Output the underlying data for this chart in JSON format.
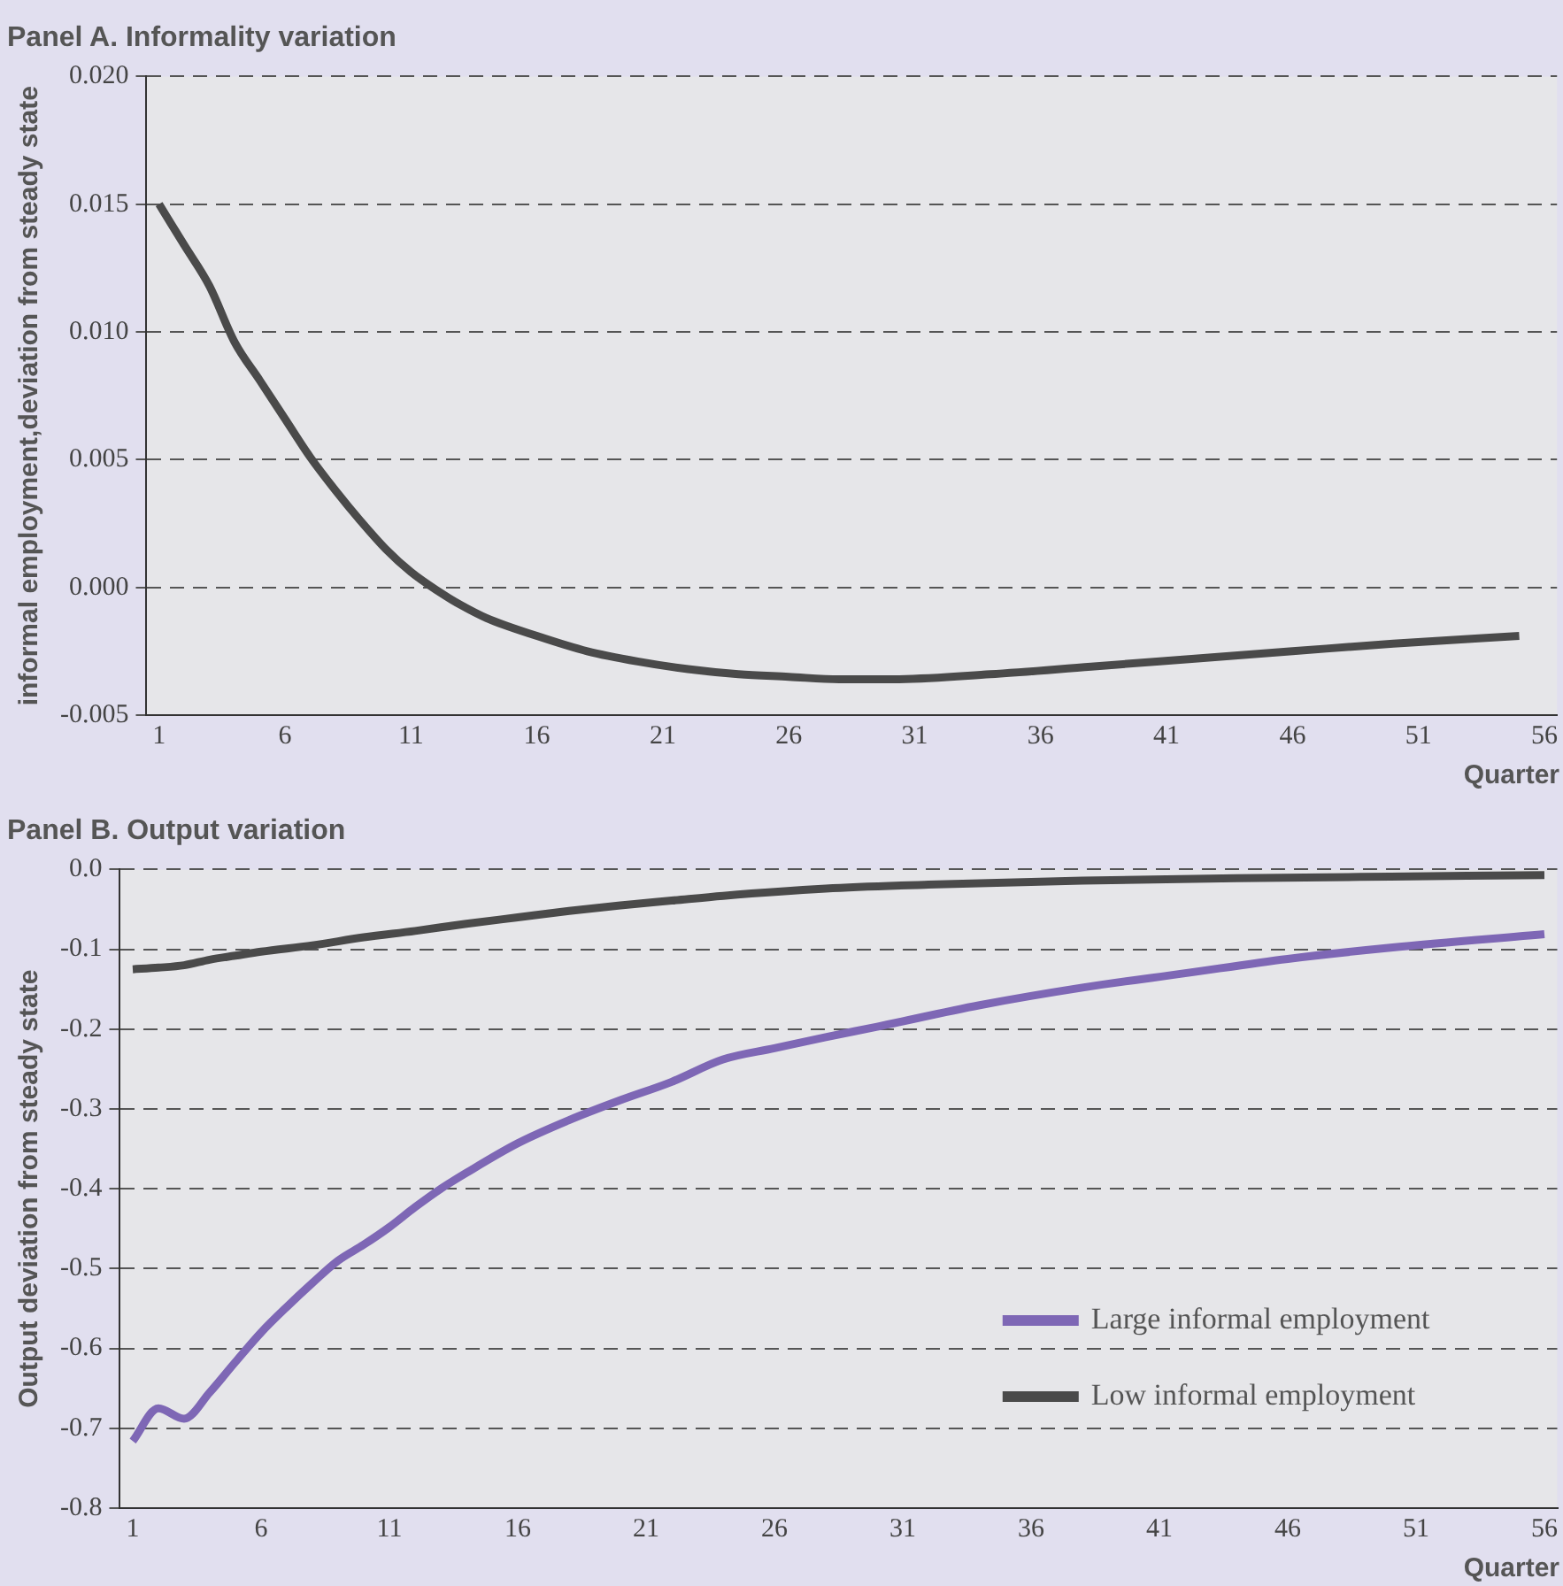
{
  "chart_data": [
    {
      "type": "line",
      "title": "Panel A. Informality variation",
      "xlabel": "Quarter",
      "ylabel": "informal employment,deviation from steady state",
      "x": [
        1,
        2,
        3,
        4,
        5,
        6,
        7,
        8,
        9,
        10,
        11,
        12,
        13,
        14,
        16,
        18,
        20,
        22,
        24,
        26,
        28,
        30,
        34,
        38,
        42,
        46,
        50,
        55
      ],
      "series": [
        {
          "color": "#4a4a4a",
          "values": [
            0.015,
            0.0134,
            0.0118,
            0.0096,
            0.0081,
            0.0066,
            0.0051,
            0.0038,
            0.0026,
            0.0015,
            0.0006,
            -0.0001,
            -0.0007,
            -0.0012,
            -0.0019,
            -0.0025,
            -0.0029,
            -0.0032,
            -0.0034,
            -0.0035,
            -0.0036,
            -0.0036,
            -0.0034,
            -0.0031,
            -0.0028,
            -0.0025,
            -0.0022,
            -0.0019
          ]
        }
      ],
      "xlim": [
        0.5,
        56.5
      ],
      "xticks": [
        1,
        6,
        11,
        16,
        21,
        26,
        31,
        36,
        41,
        46,
        51,
        56
      ],
      "ylim": [
        -0.005,
        0.02
      ],
      "yticks": [
        {
          "value": -0.005,
          "label": "-0.005"
        },
        {
          "value": 0,
          "label": "0.000"
        },
        {
          "value": 0.005,
          "label": "0.005"
        },
        {
          "value": 0.01,
          "label": "0.010"
        },
        {
          "value": 0.015,
          "label": "0.015"
        },
        {
          "value": 0.02,
          "label": "0.020"
        }
      ],
      "grid": "y",
      "legend": false,
      "marker": "none",
      "line_style": "solid"
    },
    {
      "type": "line",
      "title": "Panel B. Output variation",
      "xlabel": "Quarter",
      "ylabel": "Output deviation from steady state",
      "series": [
        {
          "name": "Large informal employment",
          "color": "#7e67b5",
          "x": [
            1,
            2,
            3,
            4,
            5,
            6,
            7,
            8,
            9,
            10,
            11,
            12,
            13,
            14,
            16,
            18,
            20,
            22,
            24,
            26,
            28,
            30,
            34,
            38,
            42,
            46,
            50,
            56
          ],
          "values": [
            -0.716,
            -0.675,
            -0.688,
            -0.655,
            -0.617,
            -0.58,
            -0.548,
            -0.518,
            -0.49,
            -0.47,
            -0.448,
            -0.423,
            -0.4,
            -0.38,
            -0.343,
            -0.314,
            -0.289,
            -0.266,
            -0.238,
            -0.224,
            -0.21,
            -0.197,
            -0.17,
            -0.148,
            -0.13,
            -0.112,
            -0.098,
            -0.081
          ]
        },
        {
          "name": "Low informal employment",
          "color": "#4a4a4a",
          "x": [
            1,
            2,
            3,
            4,
            5,
            6,
            8,
            10,
            12,
            14,
            16,
            18,
            20,
            22,
            24,
            28,
            32,
            38,
            44,
            50,
            56
          ],
          "values": [
            -0.125,
            -0.123,
            -0.12,
            -0.113,
            -0.108,
            -0.103,
            -0.095,
            -0.085,
            -0.077,
            -0.068,
            -0.06,
            -0.052,
            -0.045,
            -0.039,
            -0.033,
            -0.024,
            -0.019,
            -0.014,
            -0.011,
            -0.009,
            -0.007
          ]
        }
      ],
      "xlim": [
        0.5,
        56.5
      ],
      "xticks": [
        1,
        6,
        11,
        16,
        21,
        26,
        31,
        36,
        41,
        46,
        51,
        56
      ],
      "ylim": [
        -0.8,
        0
      ],
      "yticks": [
        {
          "value": -0.8,
          "label": "-0.8"
        },
        {
          "value": -0.7,
          "label": "-0.7"
        },
        {
          "value": -0.6,
          "label": "-0.6"
        },
        {
          "value": -0.5,
          "label": "-0.5"
        },
        {
          "value": -0.4,
          "label": "-0.4"
        },
        {
          "value": -0.3,
          "label": "-0.3"
        },
        {
          "value": -0.2,
          "label": "-0.2"
        },
        {
          "value": -0.1,
          "label": "-0.1"
        },
        {
          "value": 0,
          "label": "0.0"
        }
      ],
      "grid": "y",
      "legend": "bottom right",
      "marker": "none",
      "line_style": "solid"
    }
  ]
}
